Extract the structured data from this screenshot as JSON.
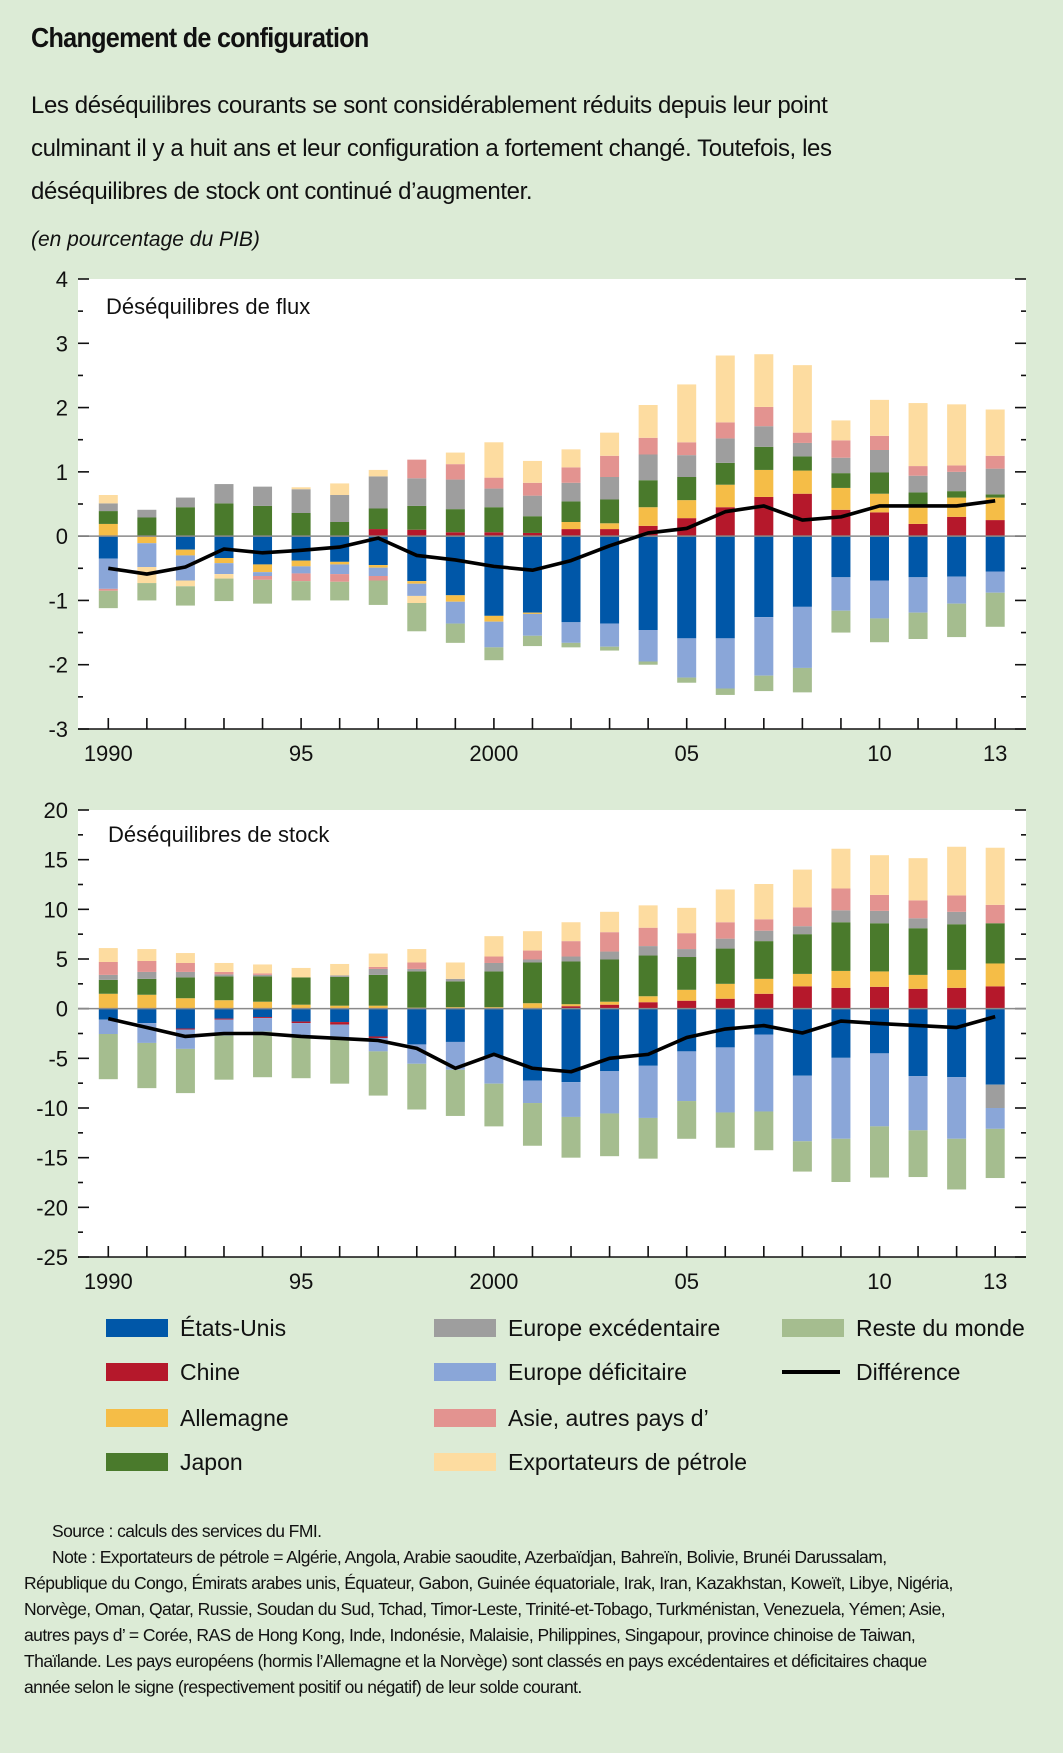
{
  "header": {
    "title": "Changement de configuration",
    "subtitle_lines": [
      "Les déséquilibres courants se sont considérablement réduits depuis leur point",
      "culminant il y a huit ans et leur configuration a fortement changé. Toutefois, les",
      "déséquilibres de stock ont continué d’augmenter."
    ],
    "units": "(en pourcentage du PIB)"
  },
  "colors": {
    "background": "#dcebd6",
    "series": [
      "#0057a8",
      "#b5182b",
      "#f5bd47",
      "#4a7a2c",
      "#9e9e9e",
      "#8aa6d8",
      "#e39390",
      "#fddca0",
      "#a5bd8f"
    ],
    "line": "#000000"
  },
  "legend": {
    "position": "bottom",
    "items": [
      {
        "label": "États-Unis"
      },
      {
        "label": "Chine"
      },
      {
        "label": "Allemagne"
      },
      {
        "label": "Japon"
      },
      {
        "label": "Europe excédentaire"
      },
      {
        "label": "Europe déficitaire"
      },
      {
        "label": "Asie, autres pays d’"
      },
      {
        "label": "Exportateurs de pétrole"
      },
      {
        "label": "Reste du monde"
      },
      {
        "label": "Différence"
      }
    ]
  },
  "chart_data": [
    {
      "type": "bar",
      "stacked": true,
      "title": "Déséquilibres de flux",
      "ylim": [
        -3,
        4
      ],
      "yticks": [
        "4",
        "3",
        "2",
        "1",
        "0",
        "-1",
        "-2",
        "-3"
      ],
      "xtick_labels": [
        {
          "year": 1990,
          "label": "1990"
        },
        {
          "year": 1995,
          "label": "95"
        },
        {
          "year": 2000,
          "label": "2000"
        },
        {
          "year": 2005,
          "label": "05"
        },
        {
          "year": 2010,
          "label": "10"
        },
        {
          "year": 2013,
          "label": "13"
        }
      ],
      "categories": [
        1990,
        1991,
        1992,
        1993,
        1994,
        1995,
        1996,
        1997,
        1998,
        1999,
        2000,
        2001,
        2002,
        2003,
        2004,
        2005,
        2006,
        2007,
        2008,
        2009,
        2010,
        2011,
        2012,
        2013
      ],
      "series": [
        {
          "name": "États-Unis",
          "values": [
            -0.35,
            0,
            -0.21,
            -0.34,
            -0.44,
            -0.38,
            -0.4,
            -0.45,
            -0.7,
            -0.92,
            -1.24,
            -1.19,
            -1.34,
            -1.36,
            -1.46,
            -1.59,
            -1.59,
            -1.26,
            -1.1,
            -0.64,
            -0.69,
            -0.64,
            -0.63,
            -0.55
          ]
        },
        {
          "name": "Chine",
          "values": [
            0,
            0,
            0,
            0,
            0,
            0,
            0,
            0.11,
            0.1,
            0.06,
            0.06,
            0.05,
            0.11,
            0.11,
            0.16,
            0.28,
            0.45,
            0.61,
            0.66,
            0.41,
            0.37,
            0.19,
            0.3,
            0.25
          ]
        },
        {
          "name": "Allemagne",
          "values": [
            0.19,
            -0.11,
            -0.09,
            -0.08,
            -0.12,
            -0.09,
            -0.04,
            -0.04,
            -0.04,
            -0.1,
            -0.09,
            -0.02,
            0.11,
            0.09,
            0.29,
            0.28,
            0.35,
            0.42,
            0.36,
            0.34,
            0.29,
            0.26,
            0.3,
            0.35
          ]
        },
        {
          "name": "Japon",
          "values": [
            0.2,
            0.29,
            0.45,
            0.51,
            0.47,
            0.36,
            0.22,
            0.32,
            0.37,
            0.36,
            0.39,
            0.26,
            0.32,
            0.37,
            0.42,
            0.36,
            0.34,
            0.36,
            0.22,
            0.23,
            0.33,
            0.23,
            0.1,
            0.05
          ]
        },
        {
          "name": "Europe excédentaire",
          "values": [
            0.12,
            0.12,
            0.15,
            0.3,
            0.3,
            0.37,
            0.42,
            0.5,
            0.43,
            0.46,
            0.29,
            0.32,
            0.29,
            0.35,
            0.4,
            0.34,
            0.38,
            0.32,
            0.21,
            0.24,
            0.35,
            0.26,
            0.3,
            0.4
          ]
        },
        {
          "name": "Europe déficitaire",
          "values": [
            -0.47,
            -0.37,
            -0.39,
            -0.17,
            -0.06,
            -0.11,
            -0.15,
            -0.13,
            -0.19,
            -0.34,
            -0.4,
            -0.34,
            -0.32,
            -0.36,
            -0.49,
            -0.61,
            -0.78,
            -0.91,
            -0.95,
            -0.52,
            -0.59,
            -0.55,
            -0.42,
            -0.33
          ]
        },
        {
          "name": "Asie, autres pays d’",
          "values": [
            -0.03,
            0,
            0,
            0,
            -0.06,
            -0.12,
            -0.12,
            -0.07,
            0.29,
            0.24,
            0.17,
            0.2,
            0.24,
            0.33,
            0.26,
            0.2,
            0.25,
            0.3,
            0.16,
            0.27,
            0.22,
            0.15,
            0.1,
            0.2
          ]
        },
        {
          "name": "Exportateurs de pétrole",
          "values": [
            0.13,
            -0.25,
            -0.09,
            -0.07,
            0,
            0.03,
            0.18,
            0.1,
            -0.11,
            0.18,
            0.55,
            0.34,
            0.28,
            0.36,
            0.51,
            0.9,
            1.04,
            0.82,
            1.05,
            0.31,
            0.56,
            0.98,
            0.95,
            0.72
          ]
        },
        {
          "name": "Reste du monde",
          "values": [
            -0.27,
            -0.27,
            -0.3,
            -0.35,
            -0.37,
            -0.3,
            -0.29,
            -0.38,
            -0.44,
            -0.3,
            -0.2,
            -0.16,
            -0.07,
            -0.06,
            -0.05,
            -0.08,
            -0.1,
            -0.24,
            -0.38,
            -0.34,
            -0.37,
            -0.41,
            -0.52,
            -0.53
          ]
        }
      ],
      "line": {
        "name": "Différence",
        "values": [
          -0.5,
          -0.59,
          -0.48,
          -0.2,
          -0.26,
          -0.22,
          -0.17,
          -0.03,
          -0.3,
          -0.37,
          -0.47,
          -0.53,
          -0.38,
          -0.15,
          0.05,
          0.12,
          0.38,
          0.47,
          0.25,
          0.3,
          0.47,
          0.47,
          0.47,
          0.55
        ]
      }
    },
    {
      "type": "bar",
      "stacked": true,
      "title": "Déséquilibres de stock",
      "ylim": [
        -25,
        20
      ],
      "yticks": [
        "20",
        "15",
        "10",
        "5",
        "0",
        "-5",
        "-10",
        "-15",
        "-20",
        "-25"
      ],
      "xtick_labels": [
        {
          "year": 1990,
          "label": "1990"
        },
        {
          "year": 1995,
          "label": "95"
        },
        {
          "year": 2000,
          "label": "2000"
        },
        {
          "year": 2005,
          "label": "05"
        },
        {
          "year": 2010,
          "label": "10"
        },
        {
          "year": 2013,
          "label": "13"
        }
      ],
      "categories": [
        1990,
        1991,
        1992,
        1993,
        1994,
        1995,
        1996,
        1997,
        1998,
        1999,
        2000,
        2001,
        2002,
        2003,
        2004,
        2005,
        2006,
        2007,
        2008,
        2009,
        2010,
        2011,
        2012,
        2013
      ],
      "series": [
        {
          "name": "États-Unis",
          "values": [
            -1.1,
            -1.45,
            -2.0,
            -1.0,
            -0.85,
            -1.3,
            -1.35,
            -2.8,
            -3.6,
            -3.35,
            -4.8,
            -7.25,
            -7.4,
            -6.3,
            -5.75,
            -4.3,
            -3.9,
            -2.6,
            -6.75,
            -4.95,
            -4.5,
            -6.8,
            -6.9,
            -7.65
          ]
        },
        {
          "name": "Chine",
          "values": [
            0,
            0,
            -0.1,
            -0.1,
            -0.1,
            -0.15,
            -0.25,
            -0.15,
            0,
            0,
            0,
            0,
            0.25,
            0.4,
            0.65,
            0.8,
            1.0,
            1.5,
            2.25,
            2.1,
            2.2,
            2.0,
            2.1,
            2.25
          ]
        },
        {
          "name": "Allemagne",
          "values": [
            1.5,
            1.4,
            1.05,
            0.85,
            0.7,
            0.4,
            0.3,
            0.3,
            0.1,
            0.15,
            0.15,
            0.55,
            0.2,
            0.3,
            0.6,
            1.1,
            1.5,
            1.5,
            1.25,
            1.7,
            1.55,
            1.4,
            1.8,
            2.3
          ]
        },
        {
          "name": "Japon",
          "values": [
            1.4,
            1.6,
            2.1,
            2.4,
            2.55,
            2.75,
            2.9,
            3.1,
            3.65,
            2.6,
            3.6,
            4.1,
            4.3,
            4.25,
            4.1,
            3.3,
            3.55,
            3.8,
            4.0,
            4.9,
            4.85,
            4.7,
            4.6,
            4.05
          ]
        },
        {
          "name": "Europe excédentaire",
          "values": [
            0.5,
            0.7,
            0.55,
            0.2,
            0.15,
            0,
            0.15,
            0.6,
            0.25,
            0.25,
            0.85,
            0.3,
            0.5,
            0.8,
            0.95,
            0.8,
            1.0,
            1.05,
            0.8,
            1.2,
            1.25,
            1.0,
            1.25,
            -2.35
          ]
        },
        {
          "name": "Europe déficitaire",
          "values": [
            -1.45,
            -2.0,
            -1.95,
            -1.6,
            -1.35,
            -1.35,
            -1.3,
            -1.35,
            -1.95,
            -2.8,
            -2.75,
            -2.25,
            -3.5,
            -4.25,
            -5.25,
            -5.0,
            -6.55,
            -7.75,
            -6.6,
            -8.15,
            -7.35,
            -5.45,
            -6.2,
            -2.1
          ]
        },
        {
          "name": "Asie, autres pays d’",
          "values": [
            1.3,
            1.1,
            0.9,
            0.25,
            0.15,
            0,
            0,
            0.2,
            0.65,
            0,
            0.65,
            0.9,
            1.55,
            1.95,
            1.85,
            1.6,
            1.65,
            1.15,
            1.9,
            2.2,
            1.6,
            1.8,
            1.65,
            1.85
          ]
        },
        {
          "name": "Exportateurs de pétrole",
          "values": [
            1.4,
            1.2,
            1.0,
            0.9,
            0.9,
            0.95,
            1.15,
            1.35,
            1.35,
            1.65,
            2.05,
            1.95,
            1.9,
            2.05,
            2.25,
            2.55,
            3.3,
            3.55,
            3.8,
            4.0,
            4.0,
            4.25,
            4.9,
            5.75
          ]
        },
        {
          "name": "Reste du monde",
          "values": [
            -4.55,
            -4.55,
            -4.45,
            -4.45,
            -4.6,
            -4.2,
            -4.65,
            -4.45,
            -4.6,
            -4.65,
            -4.3,
            -4.3,
            -4.1,
            -4.3,
            -4.1,
            -3.8,
            -3.55,
            -3.9,
            -3.05,
            -4.35,
            -5.15,
            -4.7,
            -5.1,
            -4.95
          ]
        }
      ],
      "line": {
        "name": "Différence",
        "values": [
          -1.0,
          -1.9,
          -2.8,
          -2.5,
          -2.5,
          -2.8,
          -3.0,
          -3.2,
          -4.0,
          -6.0,
          -4.6,
          -6.0,
          -6.35,
          -5.0,
          -4.6,
          -2.9,
          -2.05,
          -1.7,
          -2.45,
          -1.25,
          -1.5,
          -1.7,
          -1.9,
          -0.8
        ]
      }
    }
  ],
  "notes": {
    "source": "Source : calculs des services du FMI.",
    "note_lines": [
      "Note : Exportateurs de pétrole = Algérie, Angola, Arabie saoudite, Azerbaïdjan, Bahreïn, Bolivie, Brunéi Darussalam,",
      "République du Congo, Émirats arabes unis, Équateur, Gabon, Guinée équatoriale, Irak, Iran, Kazakhstan, Koweït, Libye, Nigéria,",
      "Norvège, Oman, Qatar, Russie, Soudan du Sud, Tchad, Timor-Leste, Trinité-et-Tobago, Turkménistan, Venezuela, Yémen; Asie,",
      "autres pays d’ = Corée, RAS de Hong Kong, Inde, Indonésie, Malaisie, Philippines, Singapour, province chinoise de Taiwan,",
      "Thaïlande. Les pays européens (hormis l’Allemagne et la Norvège) sont classés en pays excédentaires et déficitaires chaque",
      "année selon le signe (respectivement positif ou négatif) de leur solde courant."
    ]
  }
}
